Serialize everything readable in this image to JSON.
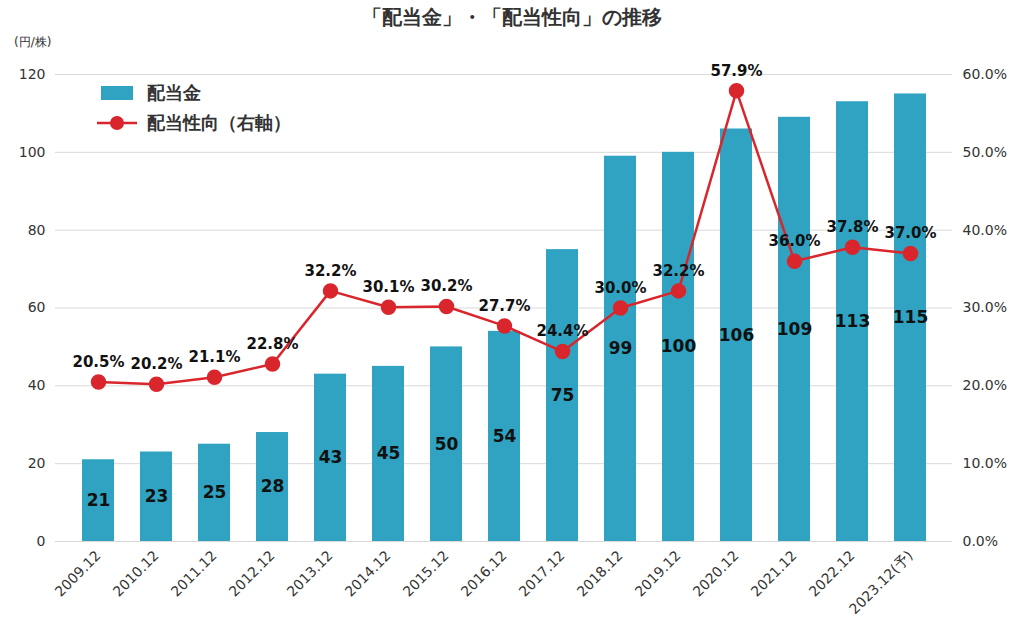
{
  "chart_data": {
    "type": "bar",
    "title": "「配当金」・「配当性向」の推移",
    "y_label": "(円/株)",
    "categories": [
      "2009.12",
      "2010.12",
      "2011.12",
      "2012.12",
      "2013.12",
      "2014.12",
      "2015.12",
      "2016.12",
      "2017.12",
      "2018.12",
      "2019.12",
      "2020.12",
      "2021.12",
      "2022.12",
      "2023.12(予)"
    ],
    "series": [
      {
        "name": "配当金",
        "type": "bar",
        "color": "#2fa3c1",
        "values": [
          21,
          23,
          25,
          28,
          43,
          45,
          50,
          54,
          75,
          99,
          100,
          106,
          109,
          113,
          115
        ]
      },
      {
        "name": "配当性向（右軸）",
        "type": "line",
        "axis": "y2",
        "color": "#d9262c",
        "marker": "circle",
        "values": [
          20.5,
          20.2,
          21.1,
          22.8,
          32.2,
          30.1,
          30.2,
          27.7,
          24.4,
          30.0,
          32.2,
          57.9,
          36.0,
          37.8,
          37.0
        ],
        "value_labels": [
          "20.5%",
          "20.2%",
          "21.1%",
          "22.8%",
          "32.2%",
          "30.1%",
          "30.2%",
          "27.7%",
          "24.4%",
          "30.0%",
          "32.2%",
          "57.9%",
          "36.0%",
          "37.8%",
          "37.0%"
        ]
      }
    ],
    "ylim": [
      0,
      120
    ],
    "yticks": [
      0,
      20,
      40,
      60,
      80,
      100,
      120
    ],
    "y2lim": [
      0,
      60
    ],
    "y2ticks": [
      {
        "value": 0,
        "label": "0.0%"
      },
      {
        "value": 10,
        "label": "10.0%"
      },
      {
        "value": 20,
        "label": "20.0%"
      },
      {
        "value": 30,
        "label": "30.0%"
      },
      {
        "value": 40,
        "label": "40.0%"
      },
      {
        "value": 50,
        "label": "50.0%"
      },
      {
        "value": 60,
        "label": "60.0%"
      }
    ],
    "grid": true,
    "legend": "top-left",
    "data_labels": true
  }
}
